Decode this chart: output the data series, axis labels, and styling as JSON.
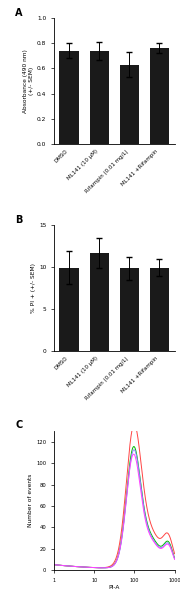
{
  "panel_a": {
    "bars": [
      0.74,
      0.74,
      0.63,
      0.76
    ],
    "errors": [
      0.06,
      0.07,
      0.1,
      0.04
    ],
    "labels": [
      "DMSO",
      "ML141 (10 μM)",
      "Rifampin (0.01 mg/L)",
      "ML141 +Rifampin"
    ],
    "ylabel": "Absorbance (490 nm)\n(+/- SEM)",
    "ylim": [
      0,
      1.0
    ],
    "yticks": [
      0.0,
      0.2,
      0.4,
      0.6,
      0.8,
      1.0
    ],
    "bar_color": "#1a1a1a",
    "label": "A"
  },
  "panel_b": {
    "bars": [
      9.9,
      11.6,
      9.8,
      9.9
    ],
    "errors": [
      2.0,
      1.8,
      1.4,
      1.0
    ],
    "labels": [
      "DMSO",
      "ML141 (10 μM)",
      "Rifampin (0.01 mg/L)",
      "ML141 +Rifampin"
    ],
    "ylabel": "% PI + (+/- SEM)",
    "ylim": [
      0,
      15
    ],
    "yticks": [
      0,
      5,
      10,
      15
    ],
    "bar_color": "#1a1a1a",
    "label": "B"
  },
  "panel_c": {
    "xlabel": "PI-A",
    "ylabel": "Number of events",
    "label": "C",
    "colors": [
      "#ff4444",
      "#00bb00",
      "#8888ff",
      "#ff44ff"
    ],
    "log_ticks": [
      1,
      10,
      100,
      1000
    ],
    "log_labels": [
      "1",
      "10",
      "100",
      "1000"
    ]
  }
}
